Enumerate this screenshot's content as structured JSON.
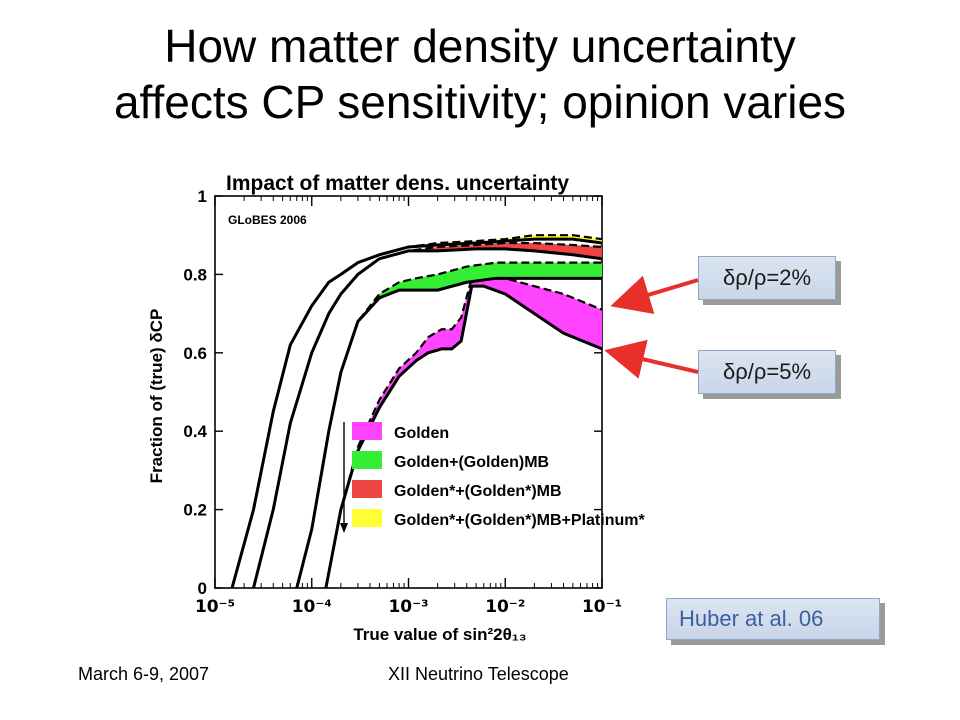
{
  "slide": {
    "title_line1": "How matter density uncertainty",
    "title_line2": "affects CP sensitivity; opinion varies",
    "footer_date": "March 6-9, 2007",
    "footer_event": "XII Neutrino Telescope",
    "callout_2pct": "δρ/ρ=2%",
    "callout_5pct": "δρ/ρ=5%",
    "reference": "Huber at al. 06",
    "arrow_color": "#e8302a"
  },
  "chart_data": {
    "type": "line",
    "title": "Impact of matter dens. uncertainty",
    "watermark": "GLoBES 2006",
    "xlabel": "True value of sin²2θ₁₃",
    "ylabel": "Fraction of (true) δCP",
    "xscale": "log",
    "xlim": [
      1e-05,
      0.1
    ],
    "ylim": [
      0,
      1
    ],
    "x_ticks": [
      "10⁻⁵",
      "10⁻⁴",
      "10⁻³",
      "10⁻²",
      "10⁻¹"
    ],
    "y_ticks": [
      "0",
      "0.2",
      "0.4",
      "0.6",
      "0.8",
      "1"
    ],
    "legend": [
      {
        "label": "Golden",
        "color": "#ff44ff"
      },
      {
        "label": "Golden+(Golden)MB",
        "color": "#33ee33"
      },
      {
        "label": "Golden*+(Golden*)MB",
        "color": "#ee4444"
      },
      {
        "label": "Golden*+(Golden*)MB+Platinum*",
        "color": "#ffff33"
      }
    ],
    "bands": [
      {
        "name": "Golden",
        "color": "#ff44ff",
        "x": [
          0.00014,
          0.0002,
          0.0003,
          0.0005,
          0.0008,
          0.0012,
          0.0016,
          0.0022,
          0.0028,
          0.0035,
          0.0045,
          0.006,
          0.01,
          0.02,
          0.04,
          0.1
        ],
        "upper": [
          0.0,
          0.2,
          0.36,
          0.48,
          0.56,
          0.6,
          0.64,
          0.66,
          0.66,
          0.69,
          0.79,
          0.8,
          0.79,
          0.77,
          0.75,
          0.71
        ],
        "lower": [
          0.0,
          0.2,
          0.35,
          0.46,
          0.54,
          0.58,
          0.6,
          0.61,
          0.61,
          0.63,
          0.77,
          0.77,
          0.75,
          0.7,
          0.65,
          0.61
        ]
      },
      {
        "name": "Golden+(Golden)MB",
        "color": "#33ee33",
        "x": [
          7e-05,
          0.0001,
          0.00015,
          0.0002,
          0.0003,
          0.0005,
          0.0008,
          0.0012,
          0.002,
          0.004,
          0.008,
          0.02,
          0.05,
          0.1
        ],
        "upper": [
          0.0,
          0.15,
          0.4,
          0.55,
          0.68,
          0.75,
          0.78,
          0.79,
          0.8,
          0.82,
          0.83,
          0.83,
          0.83,
          0.83
        ],
        "lower": [
          0.0,
          0.15,
          0.4,
          0.55,
          0.68,
          0.74,
          0.76,
          0.76,
          0.76,
          0.78,
          0.79,
          0.79,
          0.79,
          0.79
        ]
      },
      {
        "name": "Golden*+(Golden*)MB",
        "color": "#ee4444",
        "x": [
          2.5e-05,
          4e-05,
          6e-05,
          0.0001,
          0.00015,
          0.0002,
          0.0003,
          0.0005,
          0.001,
          0.002,
          0.005,
          0.01,
          0.02,
          0.05,
          0.1
        ],
        "upper": [
          0.0,
          0.2,
          0.42,
          0.6,
          0.7,
          0.75,
          0.8,
          0.84,
          0.86,
          0.87,
          0.875,
          0.88,
          0.88,
          0.875,
          0.87
        ],
        "lower": [
          0.0,
          0.2,
          0.42,
          0.6,
          0.7,
          0.75,
          0.8,
          0.84,
          0.86,
          0.86,
          0.865,
          0.865,
          0.86,
          0.85,
          0.84
        ]
      },
      {
        "name": "Golden*+(Golden*)MB+Platinum*",
        "color": "#ffff33",
        "x": [
          1.5e-05,
          2.5e-05,
          4e-05,
          6e-05,
          0.0001,
          0.00015,
          0.0002,
          0.0003,
          0.0005,
          0.001,
          0.002,
          0.005,
          0.01,
          0.02,
          0.05,
          0.1
        ],
        "upper": [
          0.0,
          0.2,
          0.45,
          0.62,
          0.72,
          0.78,
          0.8,
          0.83,
          0.85,
          0.87,
          0.88,
          0.885,
          0.89,
          0.9,
          0.9,
          0.89
        ],
        "lower": [
          0.0,
          0.2,
          0.45,
          0.62,
          0.72,
          0.78,
          0.8,
          0.83,
          0.85,
          0.87,
          0.875,
          0.88,
          0.885,
          0.89,
          0.89,
          0.88
        ]
      }
    ]
  }
}
